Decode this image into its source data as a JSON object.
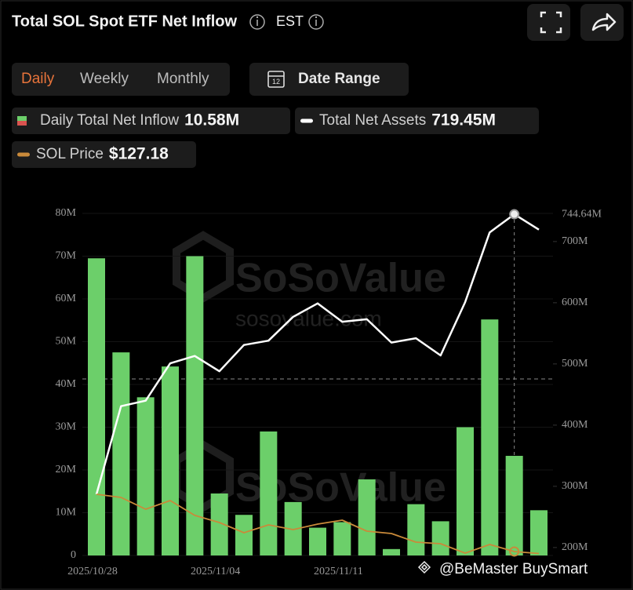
{
  "title": "Total SOL Spot ETF Net Inflow",
  "timezone": "EST",
  "tabs": [
    "Daily",
    "Weekly",
    "Monthly"
  ],
  "active_tab": 0,
  "date_range": "Date Range",
  "watermark": {
    "brand": "SoSoValue",
    "url": "sosovalue.com"
  },
  "footer": "@BeMaster BuySmart",
  "chart_data": {
    "type": "bar",
    "categories": [
      "2025/10/28",
      null,
      null,
      null,
      null,
      "2025/11/04",
      null,
      null,
      null,
      null,
      "2025/11/11",
      null,
      null,
      null,
      null,
      null,
      null,
      null,
      null
    ],
    "series": [
      {
        "name": "Daily Total Net Inflow",
        "legend_value": "10.58M",
        "type": "bar",
        "axis": "y",
        "color": "#6ccf6a",
        "values": [
          69.5,
          47.5,
          37,
          44.2,
          70,
          14.5,
          9.5,
          29,
          12.5,
          6.5,
          7.8,
          17.8,
          1.5,
          12,
          8,
          30,
          55.2,
          23.3,
          10.58
        ]
      },
      {
        "name": "Total Net Assets",
        "legend_value": "719.45M",
        "type": "line",
        "axis": "y2",
        "color": "#ffffff",
        "values": [
          287,
          431,
          440,
          501,
          513,
          488,
          531,
          538,
          577,
          599,
          569,
          573,
          535,
          542,
          514,
          601,
          715,
          744.64,
          719.45
        ]
      },
      {
        "name": "SOL Price",
        "legend_value": "$127.18",
        "type": "line",
        "axis": "y3",
        "color": "#c98a3a",
        "values": [
          193,
          189.5,
          176.4,
          186,
          169.5,
          161.6,
          150.3,
          159,
          153.8,
          159.9,
          164.2,
          152,
          149.4,
          139.8,
          138.1,
          127.6,
          137.2,
          129.4,
          127.18
        ]
      }
    ],
    "ylim": [
      0,
      80
    ],
    "yticks": [
      0,
      {
        "value": 10,
        "label": "10M"
      },
      {
        "value": 20,
        "label": "20M"
      },
      {
        "value": 30,
        "label": "30M"
      },
      {
        "value": 40,
        "label": "40M"
      },
      {
        "value": 50,
        "label": "50M"
      },
      {
        "value": 60,
        "label": "60M"
      },
      {
        "value": 70,
        "label": "70M"
      },
      {
        "value": 80,
        "label": "80M"
      }
    ],
    "y2lim": [
      187,
      746
    ],
    "y2ticks": [
      {
        "value": 200,
        "label": "200M"
      },
      {
        "value": 300,
        "label": "300M"
      },
      {
        "value": 400,
        "label": "400M"
      },
      {
        "value": 500,
        "label": "500M"
      },
      {
        "value": 600,
        "label": "600M"
      },
      {
        "value": 700,
        "label": "700M"
      }
    ],
    "y3lim": [
      125,
      505
    ],
    "highlight": {
      "index": 17,
      "label": "744.64M"
    }
  }
}
